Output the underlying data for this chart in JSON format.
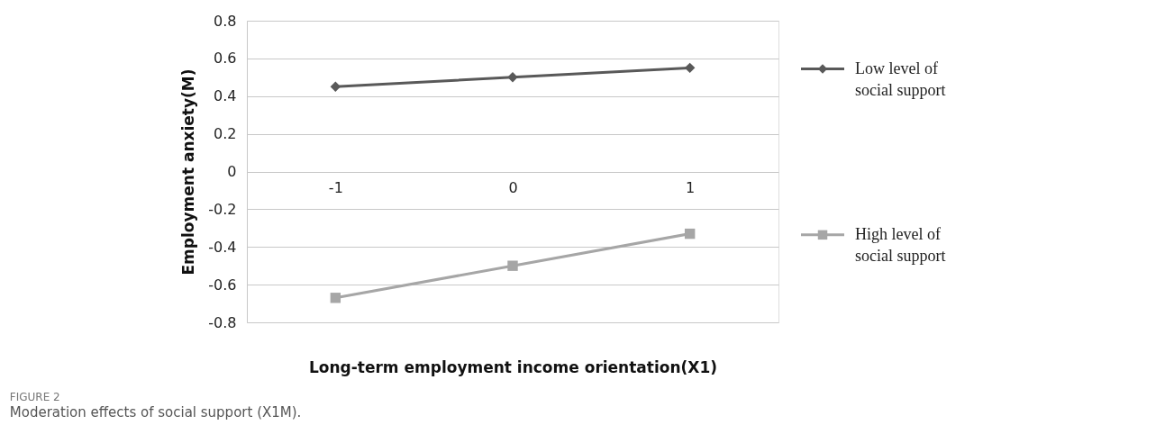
{
  "chart_data": {
    "type": "line",
    "title": "FIGURE 2",
    "subtitle": "Moderation effects of social support (X1M).",
    "xlabel": "Long-term employment income orientation(X1)",
    "ylabel": "Employment anxiety(M)",
    "categories": [
      "-1",
      "0",
      "1"
    ],
    "series": [
      {
        "name": "Low level of social support",
        "color": "#595959",
        "values": [
          0.45,
          0.5,
          0.55
        ],
        "marker": "diamond"
      },
      {
        "name": "High level of social support",
        "color": "#a6a6a6",
        "values": [
          -0.67,
          -0.5,
          -0.33
        ],
        "marker": "square"
      }
    ],
    "ylim": [
      -0.8,
      0.8
    ],
    "yticks": [
      -0.8,
      -0.6,
      -0.4,
      -0.2,
      0,
      0.2,
      0.4,
      0.6,
      0.8
    ],
    "grid": "y",
    "legend": "right"
  }
}
